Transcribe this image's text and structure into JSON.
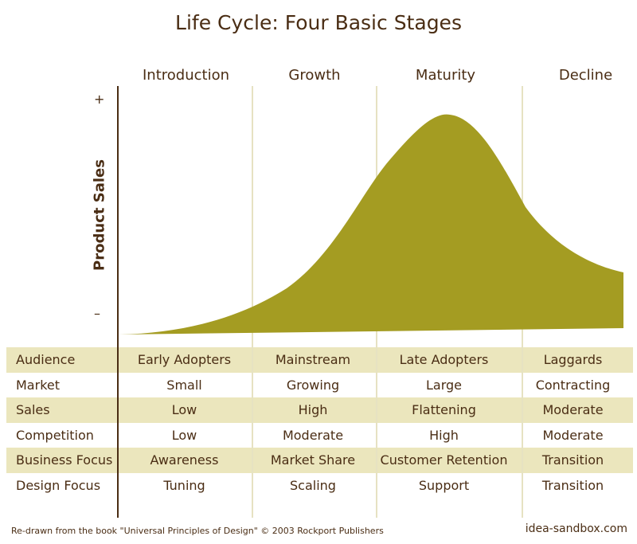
{
  "title": "Life Cycle: Four Basic Stages",
  "stages": [
    "Introduction",
    "Growth",
    "Maturity",
    "Decline"
  ],
  "y_axis": {
    "label": "Product Sales",
    "high": "+",
    "low": "–"
  },
  "rows": [
    {
      "label": "Audience",
      "values": [
        "Early Adopters",
        "Mainstream",
        "Late Adopters",
        "Laggards"
      ]
    },
    {
      "label": "Market",
      "values": [
        "Small",
        "Growing",
        "Large",
        "Contracting"
      ]
    },
    {
      "label": "Sales",
      "values": [
        "Low",
        "High",
        "Flattening",
        "Moderate"
      ]
    },
    {
      "label": "Competition",
      "values": [
        "Low",
        "Moderate",
        "High",
        "Moderate"
      ]
    },
    {
      "label": "Business Focus",
      "values": [
        "Awareness",
        "Market Share",
        "Customer Retention",
        "Transition"
      ]
    },
    {
      "label": "Design Focus",
      "values": [
        "Tuning",
        "Scaling",
        "Support",
        "Transition"
      ]
    }
  ],
  "footer": {
    "credit": "Re-drawn from  the book \"Universal Principles of Design\"  © 2003 Rockport Publishers",
    "site": "idea-sandbox.com"
  },
  "colors": {
    "curve": "#a49c22",
    "text": "#4a2d14",
    "shade": "#ebe6bd",
    "divider": "#e6e2c2"
  }
}
